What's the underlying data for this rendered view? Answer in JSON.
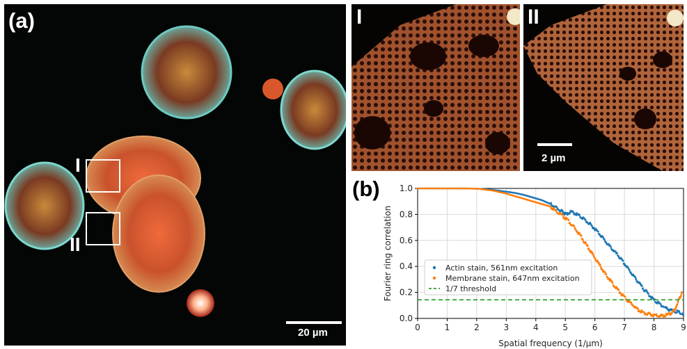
{
  "panel_a": {
    "label": "(a)",
    "scale_label": "20 µm",
    "roi_labels": [
      "I",
      "II"
    ]
  },
  "panel_zoom_1": {
    "label": "I"
  },
  "panel_zoom_2": {
    "label": "II",
    "scale_label": "2 µm"
  },
  "panel_b": {
    "label": "(b)"
  },
  "chart_data": {
    "type": "line",
    "title": "",
    "xlabel": "Spatial frequency (1/µm)",
    "ylabel": "Fourier ring correlation",
    "xlim": [
      0,
      9
    ],
    "ylim": [
      0,
      1.0
    ],
    "xticks": [
      "0",
      "1",
      "2",
      "3",
      "4",
      "5",
      "6",
      "7",
      "8",
      "9"
    ],
    "yticks": [
      "0.0",
      "0.2",
      "0.4",
      "0.6",
      "0.8",
      "1.0"
    ],
    "grid": true,
    "legend_position": "lower-left",
    "series": [
      {
        "name": "Actin stain, 561nm excitation",
        "color": "#1f77b4",
        "style": "dots",
        "x": [
          0,
          0.5,
          1,
          1.5,
          2,
          2.5,
          3,
          3.3,
          3.6,
          3.9,
          4.2,
          4.5,
          4.7,
          4.9,
          5.0,
          5.2,
          5.4,
          5.6,
          5.8,
          6.0,
          6.2,
          6.4,
          6.6,
          6.8,
          7.0,
          7.2,
          7.4,
          7.6,
          7.8,
          8.0,
          8.2,
          8.4,
          8.6,
          8.8,
          9.0
        ],
        "y": [
          1,
          1,
          1,
          1,
          0.998,
          0.99,
          0.975,
          0.965,
          0.95,
          0.93,
          0.91,
          0.88,
          0.85,
          0.82,
          0.8,
          0.82,
          0.8,
          0.77,
          0.73,
          0.69,
          0.64,
          0.58,
          0.53,
          0.48,
          0.42,
          0.36,
          0.3,
          0.24,
          0.19,
          0.14,
          0.11,
          0.08,
          0.06,
          0.05,
          0.03
        ]
      },
      {
        "name": "Membrane stain, 647nm excitation",
        "color": "#ff7f0e",
        "style": "dots",
        "x": [
          0,
          0.5,
          1,
          1.5,
          2,
          2.5,
          3,
          3.3,
          3.6,
          3.9,
          4.2,
          4.5,
          4.7,
          4.9,
          5.1,
          5.3,
          5.5,
          5.7,
          5.9,
          6.1,
          6.3,
          6.5,
          6.7,
          6.9,
          7.1,
          7.3,
          7.5,
          7.7,
          7.9,
          8.1,
          8.3,
          8.5,
          8.7,
          8.85,
          8.95
        ],
        "y": [
          1,
          1,
          1,
          1,
          0.998,
          0.985,
          0.96,
          0.94,
          0.92,
          0.9,
          0.88,
          0.86,
          0.82,
          0.79,
          0.75,
          0.7,
          0.64,
          0.57,
          0.5,
          0.43,
          0.36,
          0.3,
          0.24,
          0.19,
          0.14,
          0.1,
          0.06,
          0.04,
          0.03,
          0.02,
          0.02,
          0.03,
          0.06,
          0.15,
          0.2
        ]
      },
      {
        "name": "1/7 threshold",
        "color": "#2ca02c",
        "style": "dashed",
        "x": [
          0,
          9
        ],
        "y": [
          0.143,
          0.143
        ]
      }
    ]
  }
}
